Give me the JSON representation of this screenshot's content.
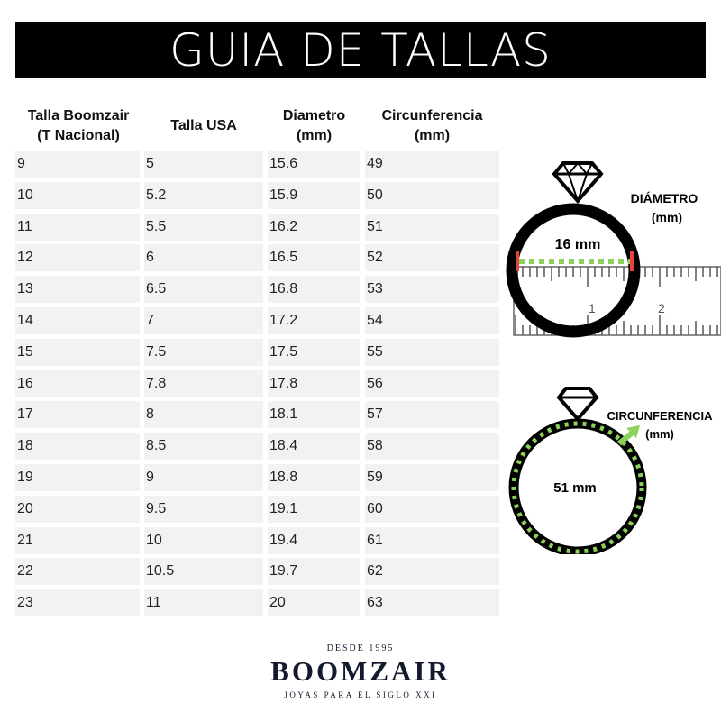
{
  "title": "GUIA DE TALLAS",
  "table": {
    "headers": [
      [
        "Talla Boomzair",
        "(T Nacional)"
      ],
      [
        "Talla USA"
      ],
      [
        "Diametro",
        "(mm)"
      ],
      [
        "Circunferencia",
        "(mm)"
      ]
    ],
    "rows": [
      [
        "9",
        "5",
        "15.6",
        "49"
      ],
      [
        "10",
        "5.2",
        "15.9",
        "50"
      ],
      [
        "11",
        "5.5",
        "16.2",
        "51"
      ],
      [
        "12",
        "6",
        "16.5",
        "52"
      ],
      [
        "13",
        "6.5",
        "16.8",
        "53"
      ],
      [
        "14",
        "7",
        "17.2",
        "54"
      ],
      [
        "15",
        "7.5",
        "17.5",
        "55"
      ],
      [
        "16",
        "7.8",
        "17.8",
        "56"
      ],
      [
        "17",
        "8",
        "18.1",
        "57"
      ],
      [
        "18",
        "8.5",
        "18.4",
        "58"
      ],
      [
        "19",
        "9",
        "18.8",
        "59"
      ],
      [
        "20",
        "9.5",
        "19.1",
        "60"
      ],
      [
        "21",
        "10",
        "19.4",
        "61"
      ],
      [
        "22",
        "10.5",
        "19.7",
        "62"
      ],
      [
        "23",
        "11",
        "20",
        "63"
      ]
    ]
  },
  "diagram_diameter": {
    "label": "DIÁMETRO",
    "unit": "(mm)",
    "measure": "16 mm",
    "ruler_ticks": [
      "1",
      "2"
    ]
  },
  "diagram_circumference": {
    "label": "CIRCUNFERENCIA",
    "unit": "(mm)",
    "measure": "51 mm"
  },
  "colors": {
    "accent_green": "#8cd25a",
    "accent_red": "#e8423c",
    "banner": "#000000",
    "logo": "#141a2e"
  },
  "logo": {
    "tagline_top": "DESDE 1995",
    "brand": "BOOMZAIR",
    "tagline_bottom": "JOYAS PARA EL SIGLO XXI"
  }
}
